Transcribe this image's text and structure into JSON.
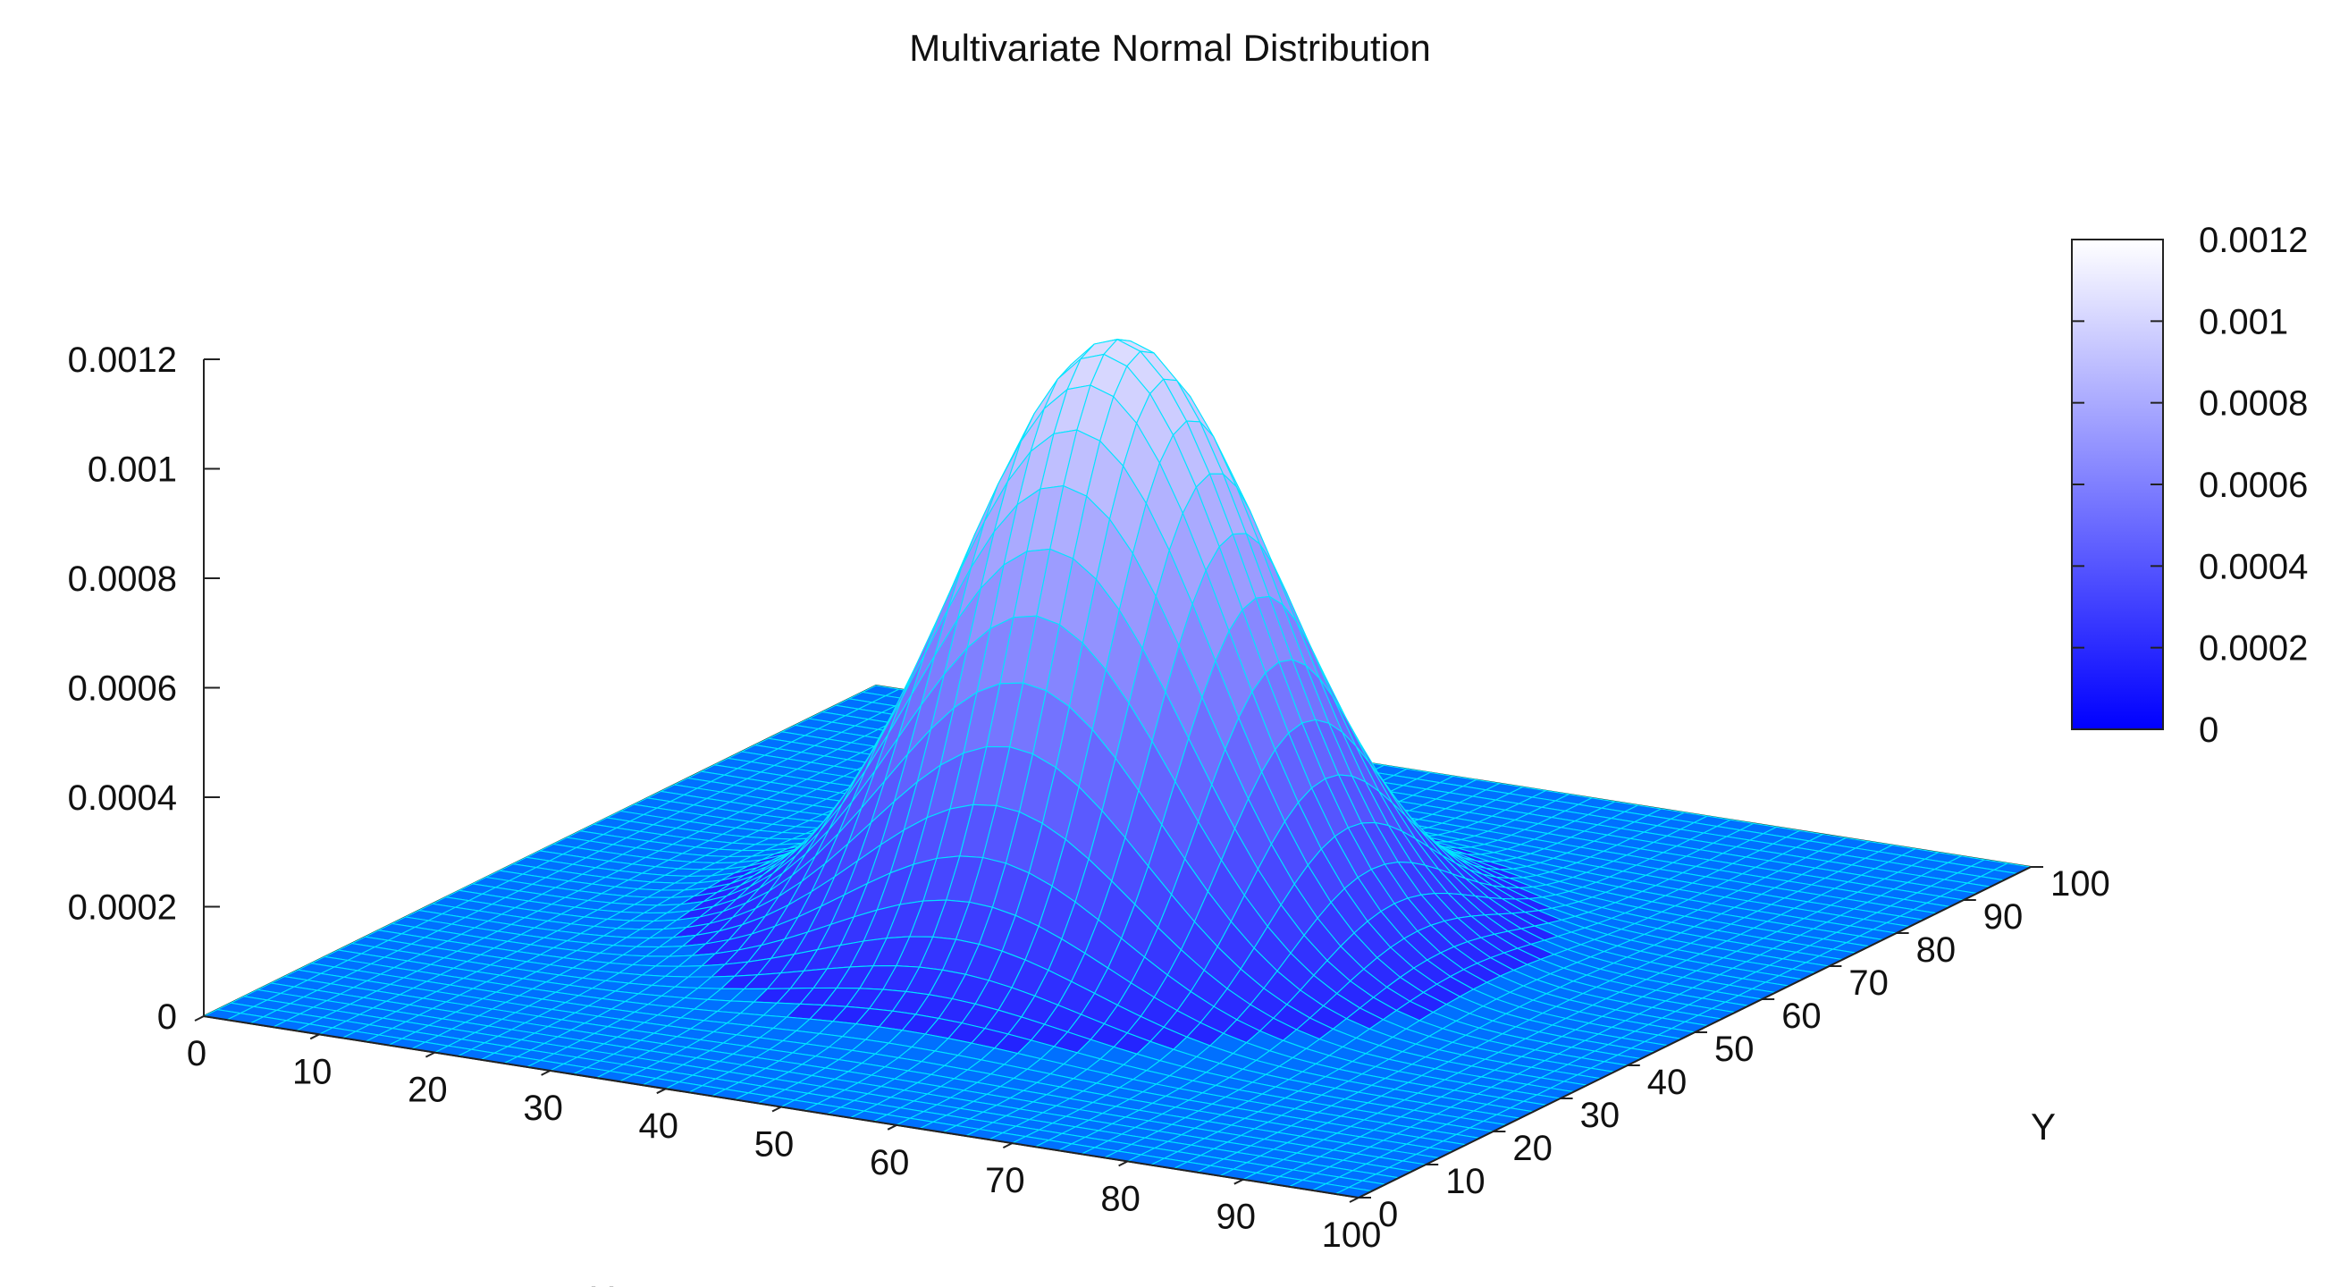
{
  "chart_data": {
    "type": "surface",
    "title": "Multivariate Normal Distribution",
    "xlabel": "X",
    "ylabel": "Y",
    "zlabel": "",
    "xlim": [
      0,
      100
    ],
    "ylim": [
      0,
      100
    ],
    "zlim": [
      0,
      0.0012
    ],
    "x_ticks": [
      "0",
      "10",
      "20",
      "30",
      "40",
      "50",
      "60",
      "70",
      "80",
      "90",
      "100"
    ],
    "y_ticks": [
      "0",
      "10",
      "20",
      "30",
      "40",
      "50",
      "60",
      "70",
      "80",
      "90",
      "100"
    ],
    "z_ticks": [
      "0",
      "0.0002",
      "0.0004",
      "0.0006",
      "0.0008",
      "0.001",
      "0.0012"
    ],
    "colorbar": {
      "range": [
        0,
        0.0012
      ],
      "ticks": [
        "0",
        "0.0002",
        "0.0004",
        "0.0006",
        "0.0008",
        "0.001",
        "0.0012"
      ],
      "colors": [
        "#0000ff",
        "#ffffff"
      ]
    },
    "distribution": {
      "mean": [
        50,
        50
      ],
      "sd": [
        12,
        12
      ],
      "correlation": 0,
      "peak_density": 0.0011
    },
    "grid_resolution": 51,
    "mesh_color": "#00e5ff",
    "floor_color": "#0070ff"
  }
}
